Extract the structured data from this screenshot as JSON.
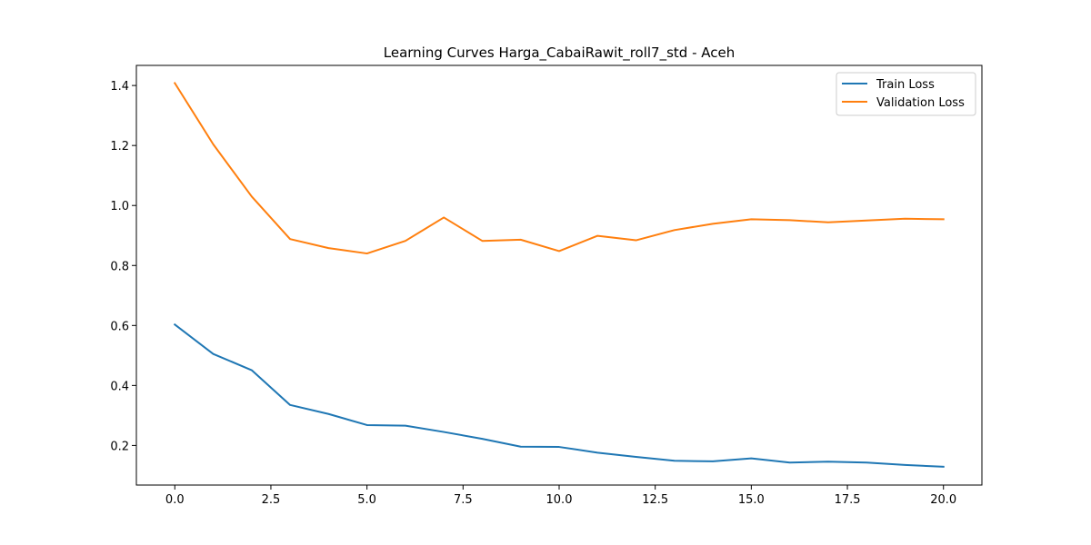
{
  "chart_data": {
    "type": "line",
    "title": "Learning Curves Harga_CabaiRawit_roll7_std - Aceh",
    "xlabel": "",
    "ylabel": "",
    "xlim": [
      -1.0,
      21.0
    ],
    "ylim": [
      0.068,
      1.467
    ],
    "x_ticks": [
      0.0,
      2.5,
      5.0,
      7.5,
      10.0,
      12.5,
      15.0,
      17.5,
      20.0
    ],
    "x_tick_labels": [
      "0.0",
      "2.5",
      "5.0",
      "7.5",
      "10.0",
      "12.5",
      "15.0",
      "17.5",
      "20.0"
    ],
    "y_ticks": [
      0.2,
      0.4,
      0.6,
      0.8,
      1.0,
      1.2,
      1.4
    ],
    "y_tick_labels": [
      "0.2",
      "0.4",
      "0.6",
      "0.8",
      "1.0",
      "1.2",
      "1.4"
    ],
    "grid": false,
    "legend_position": "top-right",
    "x": [
      0,
      1,
      2,
      3,
      4,
      5,
      6,
      7,
      8,
      9,
      10,
      11,
      12,
      13,
      14,
      15,
      16,
      17,
      18,
      19,
      20
    ],
    "series": [
      {
        "name": "Train Loss",
        "color": "#1f77b4",
        "values": [
          0.603,
          0.505,
          0.451,
          0.335,
          0.305,
          0.268,
          0.266,
          0.245,
          0.222,
          0.196,
          0.195,
          0.176,
          0.162,
          0.149,
          0.147,
          0.157,
          0.143,
          0.146,
          0.143,
          0.135,
          0.129
        ]
      },
      {
        "name": "Validation Loss",
        "color": "#ff7f0e",
        "values": [
          1.408,
          1.204,
          1.03,
          0.888,
          0.858,
          0.84,
          0.882,
          0.96,
          0.882,
          0.886,
          0.848,
          0.899,
          0.884,
          0.918,
          0.939,
          0.954,
          0.951,
          0.944,
          0.95,
          0.956,
          0.954
        ]
      }
    ]
  }
}
